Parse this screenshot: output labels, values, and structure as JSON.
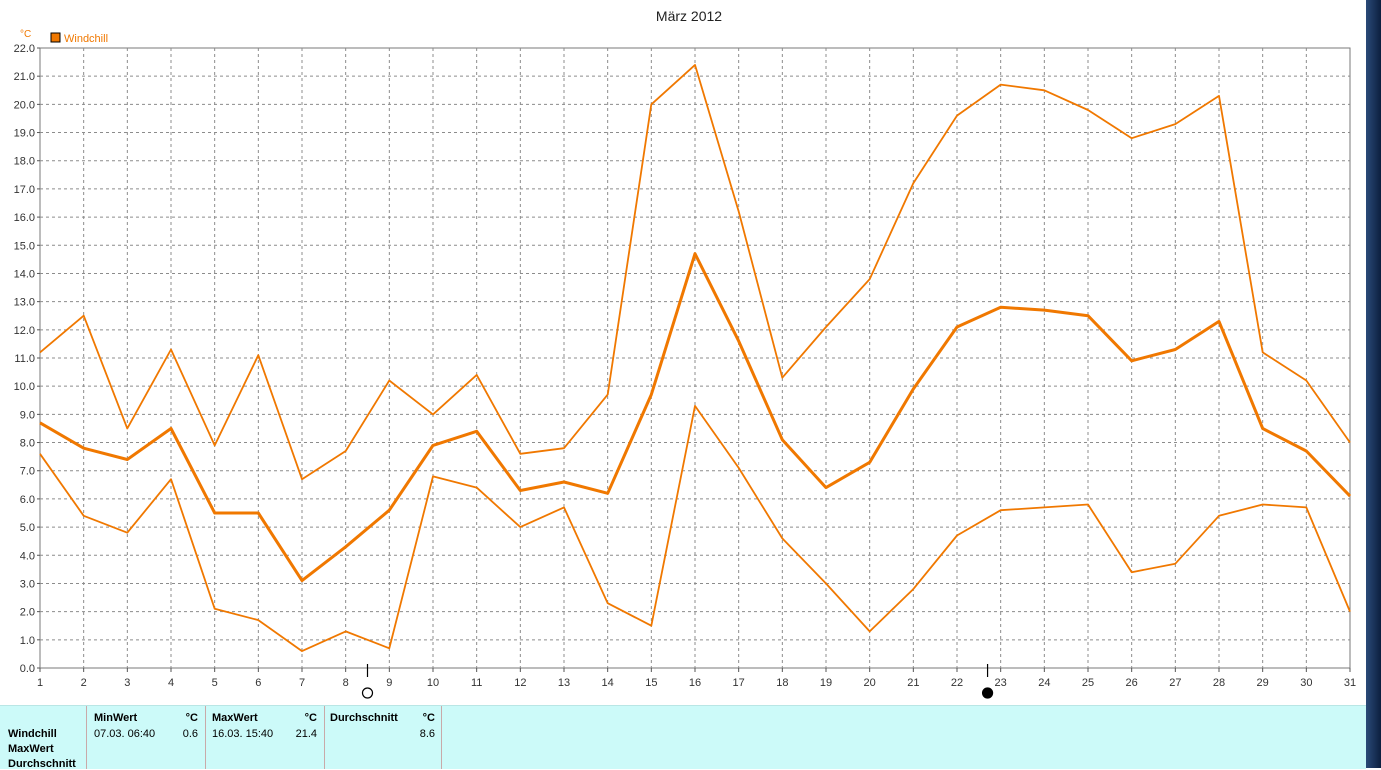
{
  "chart_data": {
    "type": "line",
    "title": "März 2012",
    "ylabel": "°C",
    "legend": "top-left",
    "grid": true,
    "ylim": [
      0,
      22
    ],
    "y_ticks": [
      "0.0",
      "1.0",
      "2.0",
      "3.0",
      "4.0",
      "5.0",
      "6.0",
      "7.0",
      "8.0",
      "9.0",
      "10.0",
      "11.0",
      "12.0",
      "13.0",
      "14.0",
      "15.0",
      "16.0",
      "17.0",
      "18.0",
      "19.0",
      "20.0",
      "21.0",
      "22.0"
    ],
    "x": [
      1,
      2,
      3,
      4,
      5,
      6,
      7,
      8,
      9,
      10,
      11,
      12,
      13,
      14,
      15,
      16,
      17,
      18,
      19,
      20,
      21,
      22,
      23,
      24,
      25,
      26,
      27,
      28,
      29,
      30,
      31
    ],
    "x_ticks": [
      "1",
      "2",
      "3",
      "4",
      "5",
      "6",
      "7",
      "8",
      "9",
      "10",
      "11",
      "12",
      "13",
      "14",
      "15",
      "16",
      "17",
      "18",
      "19",
      "20",
      "21",
      "22",
      "23",
      "24",
      "25",
      "26",
      "27",
      "28",
      "29",
      "30",
      "31"
    ],
    "legend_label": "Windchill",
    "color": "#f07800",
    "series": [
      {
        "role": "max",
        "values": [
          11.2,
          12.5,
          8.5,
          11.3,
          7.9,
          11.1,
          6.7,
          7.7,
          10.2,
          9.0,
          10.4,
          7.6,
          7.8,
          9.7,
          20.0,
          21.4,
          16.2,
          10.3,
          12.1,
          13.8,
          17.2,
          19.6,
          20.7,
          20.5,
          19.8,
          18.8,
          19.3,
          20.3,
          11.2,
          10.2,
          8.0
        ]
      },
      {
        "role": "avg",
        "values": [
          8.7,
          7.8,
          7.4,
          8.5,
          5.5,
          5.5,
          3.1,
          4.3,
          5.6,
          7.9,
          8.4,
          6.3,
          6.6,
          6.2,
          9.7,
          14.7,
          11.6,
          8.1,
          6.4,
          7.3,
          9.9,
          12.1,
          12.8,
          12.7,
          12.5,
          10.9,
          11.3,
          12.3,
          8.5,
          7.7,
          6.1
        ]
      },
      {
        "role": "min",
        "values": [
          7.6,
          5.4,
          4.8,
          6.7,
          2.1,
          1.7,
          0.6,
          1.3,
          0.7,
          6.8,
          6.4,
          5.0,
          5.7,
          2.3,
          1.5,
          9.3,
          7.1,
          4.6,
          3.0,
          1.3,
          2.8,
          4.7,
          5.6,
          5.7,
          5.8,
          3.4,
          3.7,
          5.4,
          5.8,
          5.7,
          2.0
        ]
      }
    ],
    "moon_phases": [
      {
        "x": 8.5,
        "symbol": "full-moon-icon"
      },
      {
        "x": 22.7,
        "symbol": "new-moon-icon"
      }
    ]
  },
  "stats": {
    "row_labels": [
      "Windchill",
      "MaxWert",
      "Durchschnitt"
    ],
    "min_header": "MinWert",
    "min_unit": "°C",
    "min_time": "07.03.  06:40",
    "min_value": "0.6",
    "max_header": "MaxWert",
    "max_unit": "°C",
    "max_time": "16.03.  15:40",
    "max_value": "21.4",
    "avg_header": "Durchschnitt",
    "avg_unit": "°C",
    "avg_value": "8.6"
  }
}
